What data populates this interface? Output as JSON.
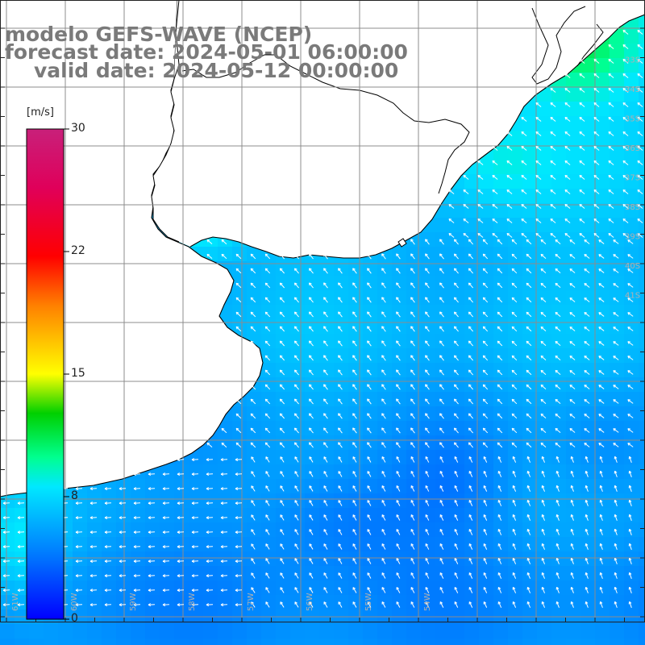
{
  "title": {
    "line1": "modelo GEFS-WAVE (NCEP)",
    "line2": "forecast date: 2024-05-01 06:00:00",
    "line3": "valid date: 2024-05-12 00:00:00"
  },
  "colorbar": {
    "units": "[m/s]",
    "range": [
      0,
      30
    ],
    "tick_labels": [
      "30",
      "22",
      "15",
      "8",
      "0"
    ],
    "colors": [
      "#0000ff",
      "#0078ff",
      "#00dcff",
      "#00ff90",
      "#00d000",
      "#ffff00",
      "#ff8000",
      "#ff0000",
      "#e00060",
      "#c0207a"
    ]
  },
  "map": {
    "land_color": "#ffffff",
    "coast_color": "#000000",
    "grid_color": "#8c8c8c",
    "arrow_color": "#ffffff",
    "lat_labels": [
      "33S",
      "34S",
      "35S",
      "36S",
      "37S",
      "38S",
      "39S",
      "40S",
      "41S"
    ],
    "lon_labels": [
      "61W",
      "60W",
      "59W",
      "58W",
      "57W",
      "56W",
      "55W",
      "54W"
    ]
  }
}
